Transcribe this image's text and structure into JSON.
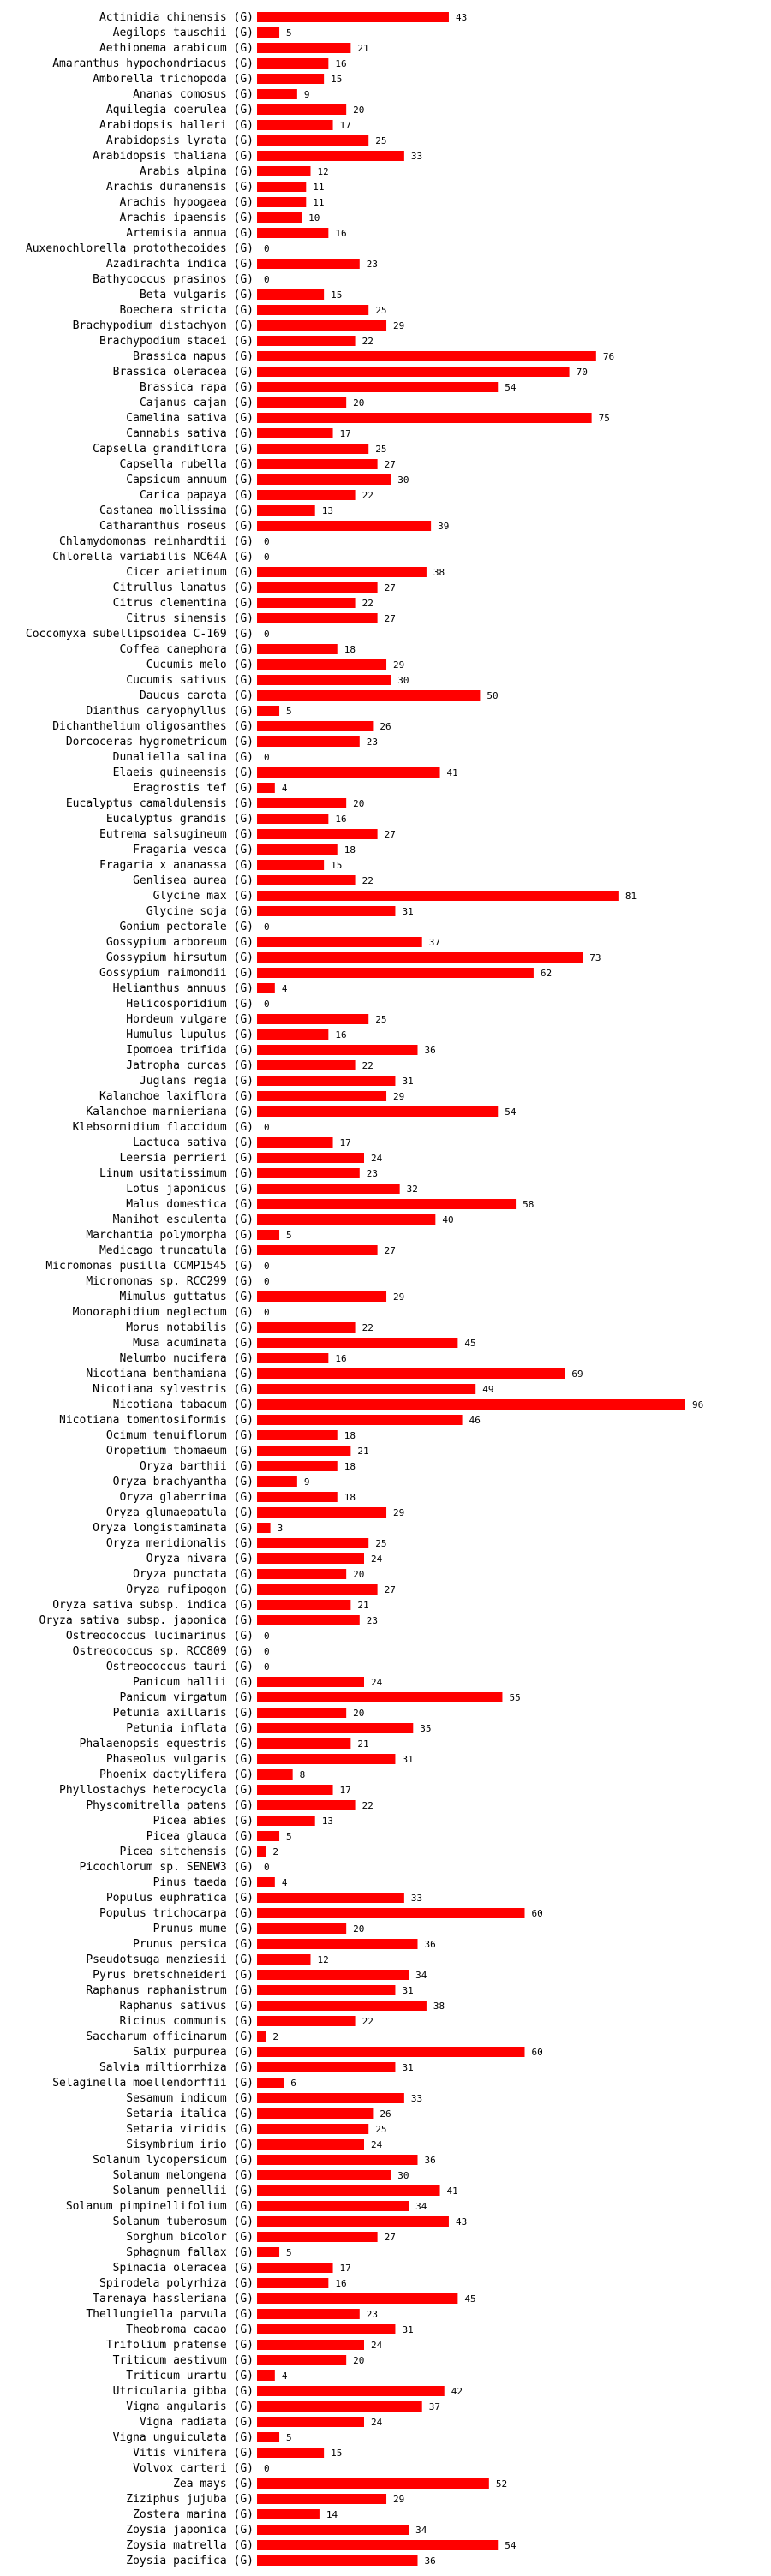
{
  "chart_data": {
    "type": "bar",
    "orientation": "horizontal",
    "title": "",
    "xlabel": "",
    "ylabel": "",
    "xlim": [
      0,
      96
    ],
    "grid": false,
    "bar_color": "#ff0000",
    "categories": [
      "Actinidia chinensis (G)",
      "Aegilops tauschii (G)",
      "Aethionema arabicum (G)",
      "Amaranthus hypochondriacus (G)",
      "Amborella trichopoda (G)",
      "Ananas comosus (G)",
      "Aquilegia coerulea (G)",
      "Arabidopsis halleri (G)",
      "Arabidopsis lyrata (G)",
      "Arabidopsis thaliana (G)",
      "Arabis alpina (G)",
      "Arachis duranensis (G)",
      "Arachis hypogaea (G)",
      "Arachis ipaensis (G)",
      "Artemisia annua (G)",
      "Auxenochlorella protothecoides (G)",
      "Azadirachta indica (G)",
      "Bathycoccus prasinos (G)",
      "Beta vulgaris (G)",
      "Boechera stricta (G)",
      "Brachypodium distachyon (G)",
      "Brachypodium stacei (G)",
      "Brassica napus (G)",
      "Brassica oleracea (G)",
      "Brassica rapa (G)",
      "Cajanus cajan (G)",
      "Camelina sativa (G)",
      "Cannabis sativa (G)",
      "Capsella grandiflora (G)",
      "Capsella rubella (G)",
      "Capsicum annuum (G)",
      "Carica papaya (G)",
      "Castanea mollissima (G)",
      "Catharanthus roseus (G)",
      "Chlamydomonas reinhardtii (G)",
      "Chlorella variabilis NC64A (G)",
      "Cicer arietinum (G)",
      "Citrullus lanatus (G)",
      "Citrus clementina (G)",
      "Citrus sinensis (G)",
      "Coccomyxa subellipsoidea C-169 (G)",
      "Coffea canephora (G)",
      "Cucumis melo (G)",
      "Cucumis sativus (G)",
      "Daucus carota (G)",
      "Dianthus caryophyllus (G)",
      "Dichanthelium oligosanthes (G)",
      "Dorcoceras hygrometricum (G)",
      "Dunaliella salina (G)",
      "Elaeis guineensis (G)",
      "Eragrostis tef (G)",
      "Eucalyptus camaldulensis (G)",
      "Eucalyptus grandis (G)",
      "Eutrema salsugineum (G)",
      "Fragaria vesca (G)",
      "Fragaria x ananassa (G)",
      "Genlisea aurea (G)",
      "Glycine max (G)",
      "Glycine soja (G)",
      "Gonium pectorale (G)",
      "Gossypium arboreum (G)",
      "Gossypium hirsutum (G)",
      "Gossypium raimondii (G)",
      "Helianthus annuus (G)",
      "Helicosporidium (G)",
      "Hordeum vulgare (G)",
      "Humulus lupulus (G)",
      "Ipomoea trifida (G)",
      "Jatropha curcas (G)",
      "Juglans regia (G)",
      "Kalanchoe laxiflora (G)",
      "Kalanchoe marnieriana (G)",
      "Klebsormidium flaccidum (G)",
      "Lactuca sativa (G)",
      "Leersia perrieri (G)",
      "Linum usitatissimum (G)",
      "Lotus japonicus (G)",
      "Malus domestica (G)",
      "Manihot esculenta (G)",
      "Marchantia polymorpha (G)",
      "Medicago truncatula (G)",
      "Micromonas pusilla CCMP1545 (G)",
      "Micromonas sp. RCC299 (G)",
      "Mimulus guttatus (G)",
      "Monoraphidium neglectum (G)",
      "Morus notabilis (G)",
      "Musa acuminata (G)",
      "Nelumbo nucifera (G)",
      "Nicotiana benthamiana (G)",
      "Nicotiana sylvestris (G)",
      "Nicotiana tabacum (G)",
      "Nicotiana tomentosiformis (G)",
      "Ocimum tenuiflorum (G)",
      "Oropetium thomaeum (G)",
      "Oryza barthii (G)",
      "Oryza brachyantha (G)",
      "Oryza glaberrima (G)",
      "Oryza glumaepatula (G)",
      "Oryza longistaminata (G)",
      "Oryza meridionalis (G)",
      "Oryza nivara (G)",
      "Oryza punctata (G)",
      "Oryza rufipogon (G)",
      "Oryza sativa subsp. indica (G)",
      "Oryza sativa subsp. japonica (G)",
      "Ostreococcus lucimarinus (G)",
      "Ostreococcus sp. RCC809 (G)",
      "Ostreococcus tauri (G)",
      "Panicum hallii (G)",
      "Panicum virgatum (G)",
      "Petunia axillaris (G)",
      "Petunia inflata (G)",
      "Phalaenopsis equestris (G)",
      "Phaseolus vulgaris (G)",
      "Phoenix dactylifera (G)",
      "Phyllostachys heterocycla (G)",
      "Physcomitrella patens (G)",
      "Picea abies (G)",
      "Picea glauca (G)",
      "Picea sitchensis (G)",
      "Picochlorum sp. SENEW3 (G)",
      "Pinus taeda (G)",
      "Populus euphratica (G)",
      "Populus trichocarpa (G)",
      "Prunus mume (G)",
      "Prunus persica (G)",
      "Pseudotsuga menziesii (G)",
      "Pyrus bretschneideri (G)",
      "Raphanus raphanistrum (G)",
      "Raphanus sativus (G)",
      "Ricinus communis (G)",
      "Saccharum officinarum (G)",
      "Salix purpurea (G)",
      "Salvia miltiorrhiza (G)",
      "Selaginella moellendorffii (G)",
      "Sesamum indicum (G)",
      "Setaria italica (G)",
      "Setaria viridis (G)",
      "Sisymbrium irio (G)",
      "Solanum lycopersicum (G)",
      "Solanum melongena (G)",
      "Solanum pennellii (G)",
      "Solanum pimpinellifolium (G)",
      "Solanum tuberosum (G)",
      "Sorghum bicolor (G)",
      "Sphagnum fallax (G)",
      "Spinacia oleracea (G)",
      "Spirodela polyrhiza (G)",
      "Tarenaya hassleriana (G)",
      "Thellungiella parvula (G)",
      "Theobroma cacao (G)",
      "Trifolium pratense (G)",
      "Triticum aestivum (G)",
      "Triticum urartu (G)",
      "Utricularia gibba (G)",
      "Vigna angularis (G)",
      "Vigna radiata (G)",
      "Vigna unguiculata (G)",
      "Vitis vinifera (G)",
      "Volvox carteri (G)",
      "Zea mays (G)",
      "Ziziphus jujuba (G)",
      "Zostera marina (G)",
      "Zoysia japonica (G)",
      "Zoysia matrella (G)",
      "Zoysia pacifica (G)"
    ],
    "values": [
      43,
      5,
      21,
      16,
      15,
      9,
      20,
      17,
      25,
      33,
      12,
      11,
      11,
      10,
      16,
      0,
      23,
      0,
      15,
      25,
      29,
      22,
      76,
      70,
      54,
      20,
      75,
      17,
      25,
      27,
      30,
      22,
      13,
      39,
      0,
      0,
      38,
      27,
      22,
      27,
      0,
      18,
      29,
      30,
      50,
      5,
      26,
      23,
      0,
      41,
      4,
      20,
      16,
      27,
      18,
      15,
      22,
      81,
      31,
      0,
      37,
      73,
      62,
      4,
      0,
      25,
      16,
      36,
      22,
      31,
      29,
      54,
      0,
      17,
      24,
      23,
      32,
      58,
      40,
      5,
      27,
      0,
      0,
      29,
      0,
      22,
      45,
      16,
      69,
      49,
      96,
      46,
      18,
      21,
      18,
      9,
      18,
      29,
      3,
      25,
      24,
      20,
      27,
      21,
      23,
      0,
      0,
      0,
      24,
      55,
      20,
      35,
      21,
      31,
      8,
      17,
      22,
      13,
      5,
      2,
      0,
      4,
      33,
      60,
      20,
      36,
      12,
      34,
      31,
      38,
      22,
      2,
      60,
      31,
      6,
      33,
      26,
      25,
      24,
      36,
      30,
      41,
      34,
      43,
      27,
      5,
      17,
      16,
      45,
      23,
      31,
      24,
      20,
      4,
      42,
      37,
      24,
      5,
      15,
      0,
      52,
      29,
      14,
      34,
      54,
      36
    ]
  }
}
